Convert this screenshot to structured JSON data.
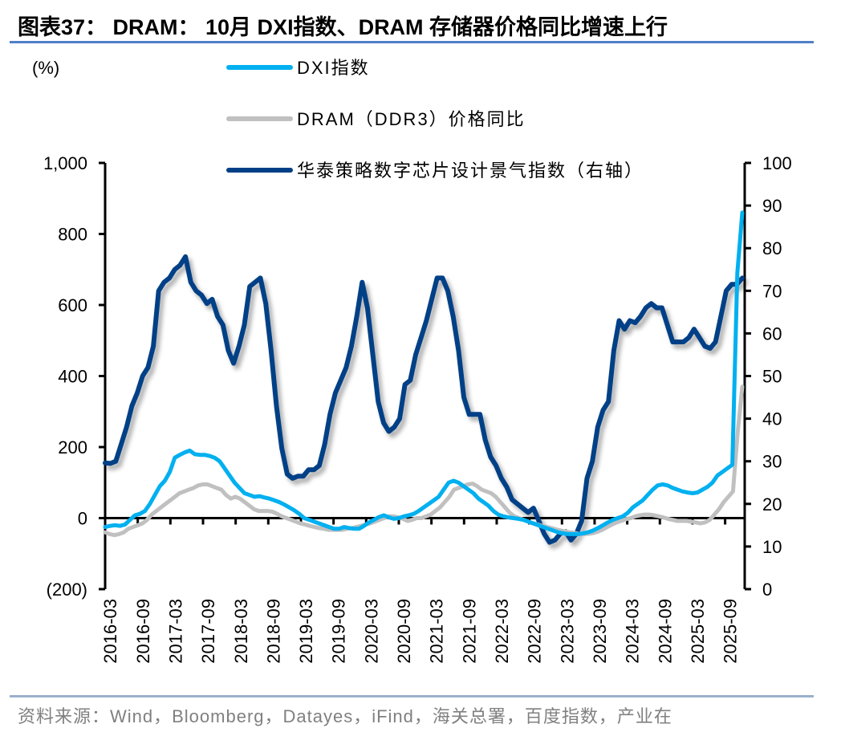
{
  "title": "图表37： DRAM： 10月 DXI指数、DRAM 存储器价格同比增速上行",
  "source": "资料来源：Wind，Bloomberg，Datayes，iFind，海关总署，百度指数，产业在",
  "colors": {
    "dxi": "#00b0f0",
    "dram": "#c0c0c0",
    "huatai": "#003f86",
    "title_rule": "#4f7fc8"
  },
  "chart_data": {
    "type": "line",
    "title": "DRAM：10月 DXI指数、DRAM 存储器价格同比增速上行",
    "ylabel": "(%)",
    "y_left": {
      "range": [
        -200,
        1000
      ],
      "ticks": [
        -200,
        0,
        200,
        400,
        600,
        800,
        1000
      ],
      "tick_labels": [
        "(200)",
        "0",
        "200",
        "400",
        "600",
        "800",
        "1,000"
      ]
    },
    "y_right": {
      "range": [
        0,
        100
      ],
      "ticks": [
        0,
        10,
        20,
        30,
        40,
        50,
        60,
        70,
        80,
        90,
        100
      ],
      "tick_labels": [
        "0",
        "10",
        "20",
        "30",
        "40",
        "50",
        "60",
        "70",
        "80",
        "90",
        "100"
      ]
    },
    "x_tick_labels": [
      "2016-03",
      "2016-09",
      "2017-03",
      "2017-09",
      "2018-03",
      "2018-09",
      "2019-03",
      "2019-09",
      "2020-03",
      "2020-09",
      "2021-03",
      "2021-09",
      "2022-03",
      "2022-09",
      "2023-03",
      "2023-09",
      "2024-03",
      "2024-09",
      "2025-03",
      "2025-09"
    ],
    "legend": [
      "DXI指数",
      "DRAM（DDR3）价格同比",
      "华泰策略数字芯片设计景气指数（右轴）"
    ],
    "legend_placement": "top-center",
    "grid": false,
    "series": [
      {
        "name": "DXI指数",
        "axis": "left",
        "values": [
          -25,
          -22,
          -20,
          -22,
          -18,
          -5,
          8,
          12,
          20,
          40,
          65,
          90,
          105,
          130,
          170,
          178,
          185,
          190,
          180,
          178,
          178,
          175,
          170,
          160,
          140,
          120,
          100,
          85,
          70,
          65,
          60,
          62,
          58,
          55,
          50,
          45,
          38,
          30,
          22,
          12,
          0,
          -5,
          -10,
          -15,
          -20,
          -25,
          -30,
          -30,
          -25,
          -28,
          -30,
          -30,
          -22,
          -12,
          -5,
          3,
          8,
          2,
          -2,
          0,
          5,
          8,
          12,
          20,
          30,
          40,
          50,
          60,
          80,
          100,
          105,
          100,
          90,
          80,
          70,
          55,
          45,
          35,
          20,
          10,
          5,
          2,
          0,
          -2,
          -5,
          -10,
          -15,
          -20,
          -25,
          -30,
          -35,
          -40,
          -43,
          -45,
          -45,
          -45,
          -43,
          -40,
          -35,
          -28,
          -20,
          -12,
          -5,
          0,
          5,
          15,
          30,
          40,
          50,
          65,
          80,
          92,
          95,
          92,
          85,
          80,
          75,
          72,
          70,
          72,
          80,
          88,
          100,
          120,
          130,
          140,
          150,
          690,
          860
        ]
      },
      {
        "name": "DRAM（DDR3）价格同比",
        "axis": "left",
        "values": [
          -40,
          -45,
          -48,
          -45,
          -40,
          -30,
          -25,
          -20,
          -15,
          -5,
          10,
          20,
          30,
          40,
          50,
          60,
          70,
          75,
          80,
          85,
          92,
          95,
          95,
          90,
          85,
          80,
          65,
          55,
          60,
          55,
          45,
          35,
          25,
          20,
          20,
          20,
          18,
          12,
          5,
          0,
          -5,
          -10,
          -15,
          -18,
          -22,
          -25,
          -28,
          -30,
          -33,
          -33,
          -33,
          -33,
          -30,
          -28,
          -25,
          -22,
          -18,
          -15,
          -10,
          -5,
          0,
          5,
          5,
          2,
          -2,
          -8,
          -5,
          0,
          0,
          5,
          10,
          20,
          30,
          45,
          60,
          80,
          85,
          90,
          95,
          97,
          90,
          80,
          75,
          70,
          60,
          45,
          30,
          15,
          5,
          0,
          -5,
          -10,
          -15,
          -18,
          -22,
          -25,
          -28,
          -32,
          -35,
          -38,
          -40,
          -42,
          -45,
          -45,
          -44,
          -42,
          -38,
          -32,
          -25,
          -18,
          -12,
          -8,
          -3,
          0,
          5,
          8,
          10,
          10,
          8,
          5,
          2,
          -2,
          -5,
          -8,
          -8,
          -8,
          -10,
          -12,
          -15,
          -12,
          -5,
          10,
          25,
          45,
          60,
          75,
          240,
          370
        ]
      },
      {
        "name": "华泰策略数字芯片设计景气指数（右轴）",
        "axis": "right",
        "values": [
          29.6,
          29.5,
          30,
          34,
          38,
          43,
          46,
          50,
          52,
          57,
          70,
          72,
          73,
          75,
          76,
          78,
          72,
          70,
          69,
          67,
          68,
          64,
          62,
          56,
          53,
          57,
          62,
          71,
          72,
          73,
          67,
          56,
          43,
          33,
          27,
          26,
          26.5,
          26.5,
          28,
          28,
          29,
          34,
          41,
          46,
          49,
          52,
          57,
          64,
          72,
          66,
          55,
          44,
          39,
          37,
          38,
          40,
          48,
          49,
          55,
          59,
          63,
          68,
          73,
          73,
          70,
          64,
          56,
          45,
          41,
          41,
          41,
          35,
          31,
          29,
          26,
          24,
          21,
          20,
          19,
          18,
          19,
          16,
          13,
          11,
          11.5,
          13,
          13.5,
          11.5,
          13,
          16,
          26,
          30,
          38,
          42,
          44,
          56,
          63,
          61,
          63,
          62.5,
          64,
          66,
          67,
          66,
          66,
          62,
          58,
          58,
          58,
          59,
          61,
          59,
          57,
          56.5,
          58,
          64,
          70,
          71.5,
          71.5,
          73
        ]
      }
    ]
  }
}
